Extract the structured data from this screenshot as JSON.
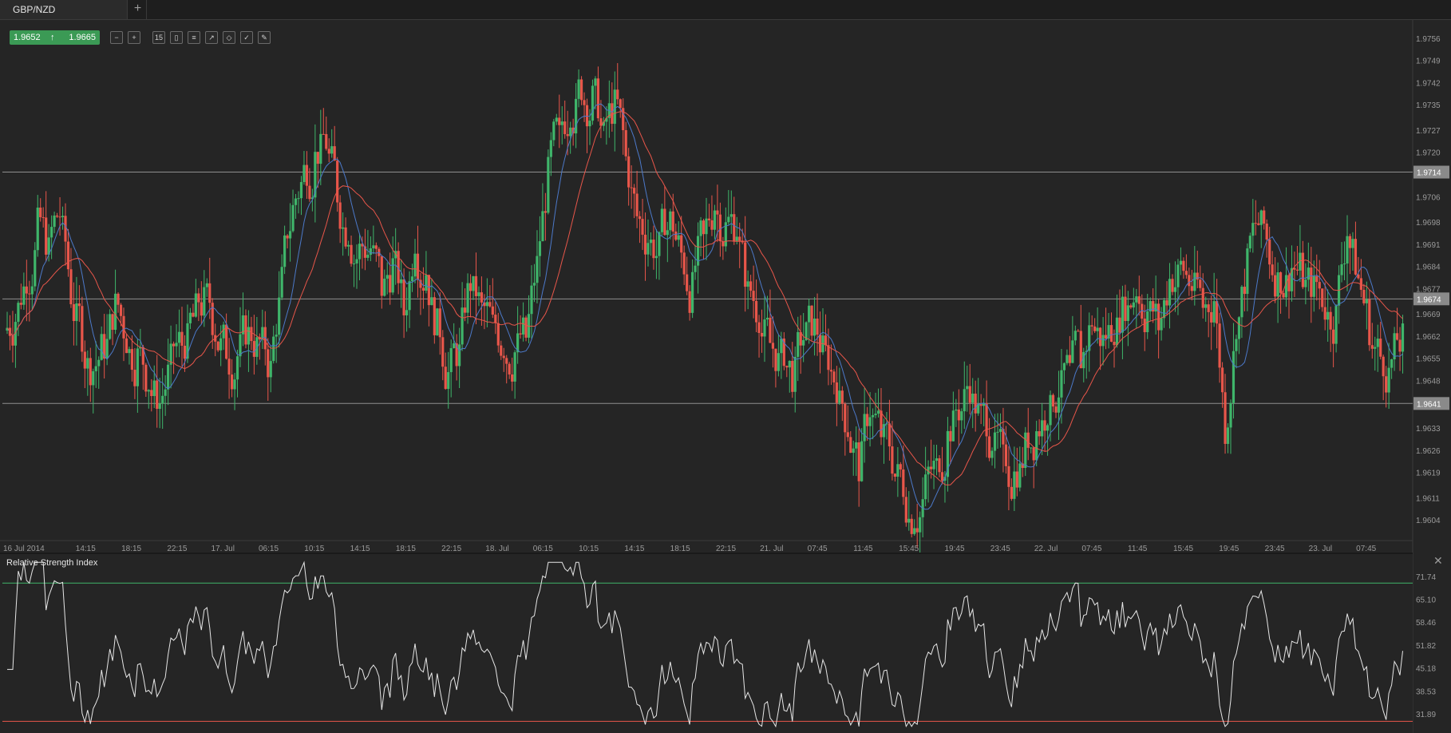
{
  "tabs": [
    {
      "label": "GBP/NZD"
    }
  ],
  "quote": {
    "bid": "1.9652",
    "ask": "1.9665",
    "direction": "up"
  },
  "toolbar": {
    "tools": [
      "zoom-out-icon",
      "zoom-in-icon",
      "timeframe-icon",
      "candle-type-icon",
      "indicators-icon",
      "draw-tools-icon",
      "object-tree-icon",
      "template-icon",
      "pencil-icon"
    ],
    "timeframe_label": "15"
  },
  "price_axis": {
    "labels": [
      "1.9756",
      "1.9749",
      "1.9742",
      "1.9735",
      "1.9727",
      "1.9720",
      "1.9706",
      "1.9698",
      "1.9691",
      "1.9684",
      "1.9677",
      "1.9669",
      "1.9662",
      "1.9655",
      "1.9648",
      "1.9633",
      "1.9626",
      "1.9619",
      "1.9611",
      "1.9604"
    ]
  },
  "horizontal_levels": [
    {
      "price": "1.9714"
    },
    {
      "price": "1.9674"
    },
    {
      "price": "1.9641"
    }
  ],
  "time_axis": {
    "labels": [
      "16 Jul 2014",
      "14:15",
      "18:15",
      "22:15",
      "17. Jul",
      "06:15",
      "10:15",
      "14:15",
      "18:15",
      "22:15",
      "18. Jul",
      "06:15",
      "10:15",
      "14:15",
      "18:15",
      "22:15",
      "21. Jul",
      "07:45",
      "11:45",
      "15:45",
      "19:45",
      "23:45",
      "22. Jul",
      "07:45",
      "11:45",
      "15:45",
      "19:45",
      "23:45",
      "23. Jul",
      "07:45"
    ]
  },
  "rsi": {
    "title": "Relative Strength Index",
    "axis_labels": [
      "71.74",
      "65.10",
      "58.46",
      "51.82",
      "45.18",
      "38.53",
      "31.89"
    ],
    "upper": 70,
    "lower": 30
  },
  "colors": {
    "bull": "#3fb56a",
    "bear": "#e8564a",
    "ma_fast": "#4c79c9",
    "ma_slow": "#e8564a",
    "rsi_line": "#e6e6e6",
    "rsi_upper": "#3fb56a",
    "rsi_lower": "#e8564a",
    "bg": "#252525"
  },
  "chart_data": {
    "type": "candlestick",
    "symbol": "GBP/NZD",
    "price_range": [
      1.9598,
      1.9762
    ],
    "closes": [
      1.9668,
      1.9682,
      1.9696,
      1.9688,
      1.9701,
      1.9676,
      1.9664,
      1.9652,
      1.966,
      1.9671,
      1.9662,
      1.9655,
      1.9648,
      1.9641,
      1.9653,
      1.966,
      1.9668,
      1.9672,
      1.9664,
      1.9659,
      1.9656,
      1.9662,
      1.966,
      1.9651,
      1.9679,
      1.9702,
      1.9714,
      1.9718,
      1.9724,
      1.9708,
      1.9696,
      1.9689,
      1.969,
      1.9678,
      1.9684,
      1.967,
      1.9694,
      1.9683,
      1.9664,
      1.965,
      1.9656,
      1.968,
      1.967,
      1.9665,
      1.966,
      1.9657,
      1.9662,
      1.9684,
      1.9712,
      1.9724,
      1.9735,
      1.9742,
      1.9736,
      1.9724,
      1.9734,
      1.9718,
      1.97,
      1.9693,
      1.9689,
      1.9698,
      1.9688,
      1.9676,
      1.9692,
      1.9704,
      1.9696,
      1.9697,
      1.9675,
      1.967,
      1.966,
      1.9655,
      1.9651,
      1.9662,
      1.9664,
      1.9656,
      1.9648,
      1.9634,
      1.9622,
      1.964,
      1.9632,
      1.9624,
      1.9616,
      1.9606,
      1.9614,
      1.962,
      1.963,
      1.964,
      1.9648,
      1.9636,
      1.963,
      1.9622,
      1.9618,
      1.9626,
      1.9632,
      1.964,
      1.9646,
      1.965,
      1.9656,
      1.9668,
      1.966,
      1.9666,
      1.9674,
      1.9678,
      1.967,
      1.9666,
      1.968,
      1.9684,
      1.9678,
      1.9672,
      1.9674,
      1.9634,
      1.9668,
      1.9684,
      1.9698,
      1.9688,
      1.9682,
      1.9684,
      1.9682,
      1.9676,
      1.9672,
      1.9668,
      1.9696,
      1.968,
      1.9666,
      1.9656,
      1.9654,
      1.966
    ]
  }
}
